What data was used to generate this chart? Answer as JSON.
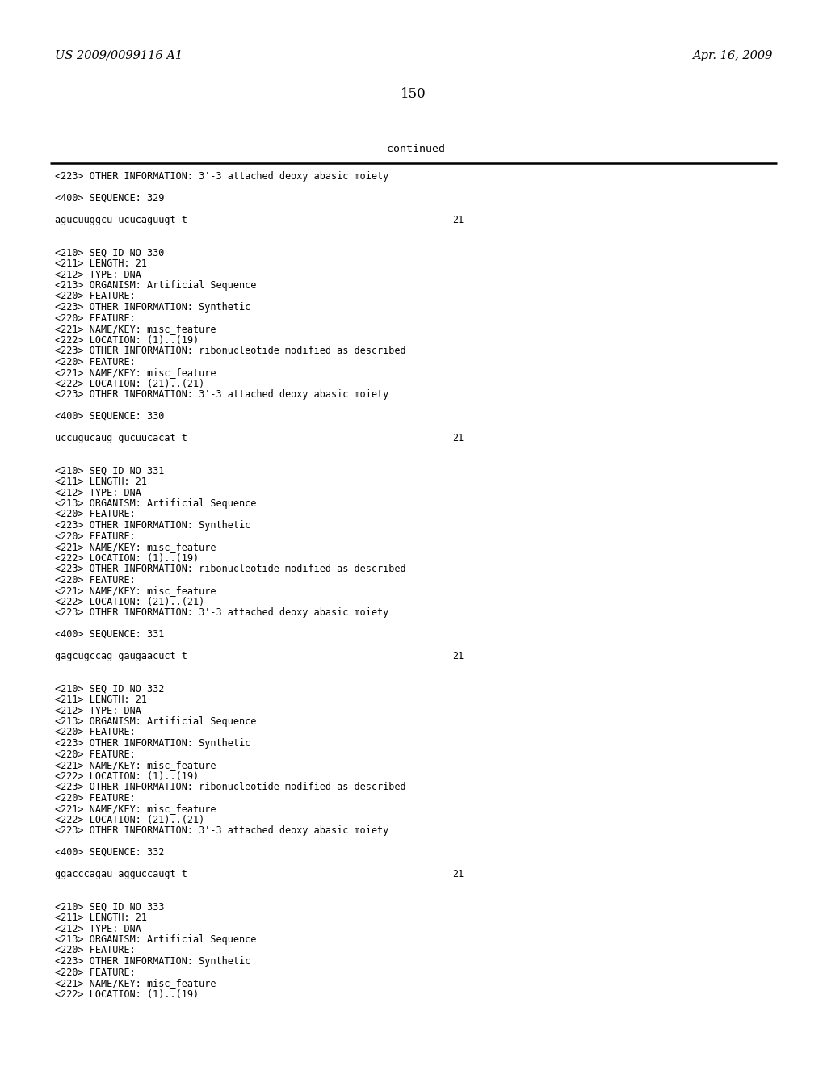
{
  "background_color": "#ffffff",
  "header_left": "US 2009/0099116 A1",
  "header_right": "Apr. 16, 2009",
  "page_number": "150",
  "continued_label": "-continued",
  "font_size_header": 10.5,
  "font_size_page": 12,
  "font_size_mono": 8.5,
  "font_size_continued": 9.5,
  "content_lines": [
    "<223> OTHER INFORMATION: 3'-3 attached deoxy abasic moiety",
    "",
    "<400> SEQUENCE: 329",
    "",
    "agucuuggcu ucucaguugt t",
    "",
    "",
    "<210> SEQ ID NO 330",
    "<211> LENGTH: 21",
    "<212> TYPE: DNA",
    "<213> ORGANISM: Artificial Sequence",
    "<220> FEATURE:",
    "<223> OTHER INFORMATION: Synthetic",
    "<220> FEATURE:",
    "<221> NAME/KEY: misc_feature",
    "<222> LOCATION: (1)..(19)",
    "<223> OTHER INFORMATION: ribonucleotide modified as described",
    "<220> FEATURE:",
    "<221> NAME/KEY: misc_feature",
    "<222> LOCATION: (21)..(21)",
    "<223> OTHER INFORMATION: 3'-3 attached deoxy abasic moiety",
    "",
    "<400> SEQUENCE: 330",
    "",
    "uccugucaug gucuucacat t",
    "",
    "",
    "<210> SEQ ID NO 331",
    "<211> LENGTH: 21",
    "<212> TYPE: DNA",
    "<213> ORGANISM: Artificial Sequence",
    "<220> FEATURE:",
    "<223> OTHER INFORMATION: Synthetic",
    "<220> FEATURE:",
    "<221> NAME/KEY: misc_feature",
    "<222> LOCATION: (1)..(19)",
    "<223> OTHER INFORMATION: ribonucleotide modified as described",
    "<220> FEATURE:",
    "<221> NAME/KEY: misc_feature",
    "<222> LOCATION: (21)..(21)",
    "<223> OTHER INFORMATION: 3'-3 attached deoxy abasic moiety",
    "",
    "<400> SEQUENCE: 331",
    "",
    "gagcugccag gaugaacuct t",
    "",
    "",
    "<210> SEQ ID NO 332",
    "<211> LENGTH: 21",
    "<212> TYPE: DNA",
    "<213> ORGANISM: Artificial Sequence",
    "<220> FEATURE:",
    "<223> OTHER INFORMATION: Synthetic",
    "<220> FEATURE:",
    "<221> NAME/KEY: misc_feature",
    "<222> LOCATION: (1)..(19)",
    "<223> OTHER INFORMATION: ribonucleotide modified as described",
    "<220> FEATURE:",
    "<221> NAME/KEY: misc_feature",
    "<222> LOCATION: (21)..(21)",
    "<223> OTHER INFORMATION: 3'-3 attached deoxy abasic moiety",
    "",
    "<400> SEQUENCE: 332",
    "",
    "ggacccagau agguccaugt t",
    "",
    "",
    "<210> SEQ ID NO 333",
    "<211> LENGTH: 21",
    "<212> TYPE: DNA",
    "<213> ORGANISM: Artificial Sequence",
    "<220> FEATURE:",
    "<223> OTHER INFORMATION: Synthetic",
    "<220> FEATURE:",
    "<221> NAME/KEY: misc_feature",
    "<222> LOCATION: (1)..(19)"
  ],
  "sequence_line_indices": [
    4,
    24,
    44,
    64
  ],
  "sequence_number": "21"
}
